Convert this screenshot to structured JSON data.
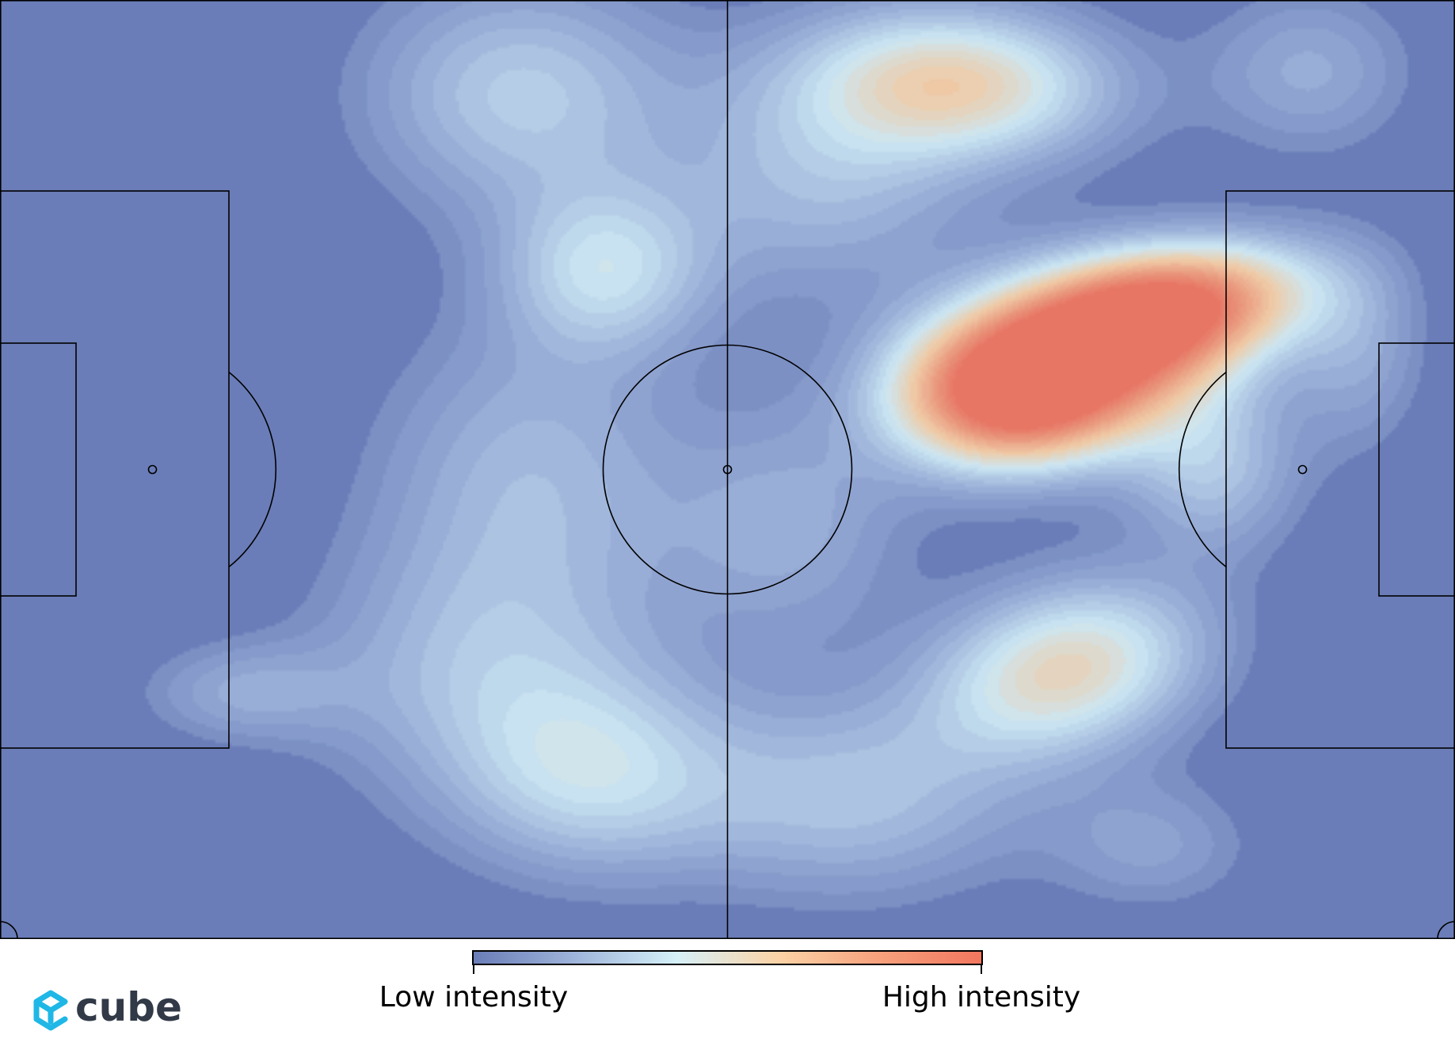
{
  "chart_data": {
    "type": "heatmap",
    "title": "",
    "xlabel": "",
    "ylabel": "",
    "pitch": {
      "length": 120,
      "width": 80,
      "orientation": "horizontal",
      "line_color": "#000000",
      "grass_color": "#6a7db8"
    },
    "colorbar": {
      "low_label": "Low intensity",
      "high_label": "High intensity",
      "colors": [
        "#6a7db8",
        "#9fb4da",
        "#d5f0f8",
        "#fbd3a6",
        "#f6a07c",
        "#f2765e"
      ],
      "placement": "bottom-center"
    },
    "intensity_range": [
      0,
      1
    ],
    "hotspots": [
      {
        "x": 88,
        "y": 31,
        "intensity": 1.0,
        "sx": 9.0,
        "sy": 5.0,
        "rot": -0.2
      },
      {
        "x": 97,
        "y": 26,
        "intensity": 0.78,
        "sx": 8.0,
        "sy": 3.5,
        "rot": -0.15
      },
      {
        "x": 83,
        "y": 34,
        "intensity": 0.55,
        "sx": 6.0,
        "sy": 4.0,
        "rot": 0
      },
      {
        "x": 79,
        "y": 7,
        "intensity": 0.55,
        "sx": 9.0,
        "sy": 4.5,
        "rot": 0.05
      },
      {
        "x": 88,
        "y": 57,
        "intensity": 0.55,
        "sx": 8.0,
        "sy": 5.0,
        "rot": -0.25
      },
      {
        "x": 100,
        "y": 40,
        "intensity": 0.28,
        "sx": 5.0,
        "sy": 5.0,
        "rot": 0
      },
      {
        "x": 43,
        "y": 8,
        "intensity": 0.32,
        "sx": 9.0,
        "sy": 7.0,
        "rot": 0
      },
      {
        "x": 50,
        "y": 23,
        "intensity": 0.35,
        "sx": 6.0,
        "sy": 5.0,
        "rot": 0
      },
      {
        "x": 44,
        "y": 40,
        "intensity": 0.24,
        "sx": 9.0,
        "sy": 9.0,
        "rot": 0
      },
      {
        "x": 40,
        "y": 57,
        "intensity": 0.25,
        "sx": 10.0,
        "sy": 8.0,
        "rot": 0
      },
      {
        "x": 49,
        "y": 66,
        "intensity": 0.32,
        "sx": 8.0,
        "sy": 6.0,
        "rot": 0
      },
      {
        "x": 20,
        "y": 59,
        "intensity": 0.18,
        "sx": 6.0,
        "sy": 3.0,
        "rot": 0
      },
      {
        "x": 70,
        "y": 68,
        "intensity": 0.28,
        "sx": 10.0,
        "sy": 6.0,
        "rot": 0
      },
      {
        "x": 68,
        "y": 15,
        "intensity": 0.26,
        "sx": 9.0,
        "sy": 7.0,
        "rot": 0
      },
      {
        "x": 108,
        "y": 6,
        "intensity": 0.2,
        "sx": 6.0,
        "sy": 5.0,
        "rot": 0
      },
      {
        "x": 65,
        "y": 45,
        "intensity": 0.2,
        "sx": 7.0,
        "sy": 7.0,
        "rot": 0
      },
      {
        "x": 95,
        "y": 72,
        "intensity": 0.16,
        "sx": 6.0,
        "sy": 4.0,
        "rot": 0
      },
      {
        "x": 112,
        "y": 30,
        "intensity": 0.18,
        "sx": 4.0,
        "sy": 6.0,
        "rot": 0
      }
    ]
  },
  "brand": {
    "name": "cube",
    "color": "#1fb7e6",
    "text_color": "#323a48"
  }
}
